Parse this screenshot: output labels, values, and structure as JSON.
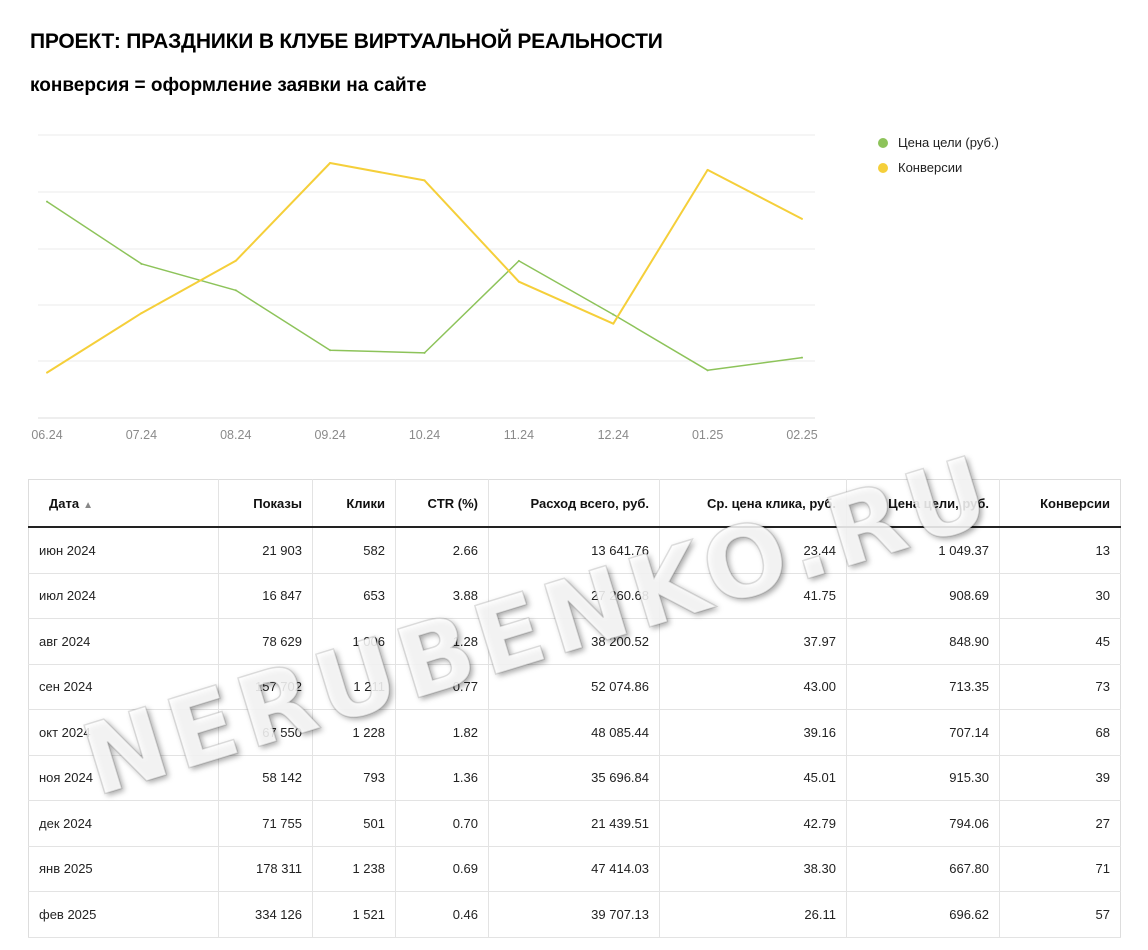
{
  "header": {
    "title": "ПРОЕКТ: ПРАЗДНИКИ В КЛУБЕ ВИРТУАЛЬНОЙ РЕАЛЬНОСТИ",
    "subtitle": "конверсия = оформление заявки на сайте"
  },
  "chart_data": {
    "type": "line",
    "categories": [
      "06.24",
      "07.24",
      "08.24",
      "09.24",
      "10.24",
      "11.24",
      "12.24",
      "01.25",
      "02.25"
    ],
    "series": [
      {
        "name": "Цена цели (руб.)",
        "color": "#8dc35a",
        "values": [
          1049.37,
          908.69,
          848.9,
          713.35,
          707.14,
          915.3,
          794.06,
          667.8,
          696.62
        ]
      },
      {
        "name": "Конверсии",
        "color": "#f5cf3a",
        "values": [
          13,
          30,
          45,
          73,
          68,
          39,
          27,
          71,
          57
        ]
      }
    ],
    "grid": true,
    "legend": "right"
  },
  "legend": {
    "items": [
      {
        "label": "Цена цели (руб.)",
        "color": "#8dc35a"
      },
      {
        "label": "Конверсии",
        "color": "#f5cf3a"
      }
    ]
  },
  "table": {
    "headers": [
      "Дата",
      "Показы",
      "Клики",
      "CTR (%)",
      "Расход всего, руб.",
      "Ср. цена клика, руб.",
      "Цена цели, руб.",
      "Конверсии"
    ],
    "sort_indicator": "▲",
    "rows": [
      [
        "июн 2024",
        "21 903",
        "582",
        "2.66",
        "13 641.76",
        "23.44",
        "1 049.37",
        "13"
      ],
      [
        "июл 2024",
        "16 847",
        "653",
        "3.88",
        "27 260.68",
        "41.75",
        "908.69",
        "30"
      ],
      [
        "авг 2024",
        "78 629",
        "1 006",
        "1.28",
        "38 200.52",
        "37.97",
        "848.90",
        "45"
      ],
      [
        "сен 2024",
        "157 702",
        "1 211",
        "0.77",
        "52 074.86",
        "43.00",
        "713.35",
        "73"
      ],
      [
        "окт 2024",
        "67 550",
        "1 228",
        "1.82",
        "48 085.44",
        "39.16",
        "707.14",
        "68"
      ],
      [
        "ноя 2024",
        "58 142",
        "793",
        "1.36",
        "35 696.84",
        "45.01",
        "915.30",
        "39"
      ],
      [
        "дек 2024",
        "71 755",
        "501",
        "0.70",
        "21 439.51",
        "42.79",
        "794.06",
        "27"
      ],
      [
        "янв 2025",
        "178 311",
        "1 238",
        "0.69",
        "47 414.03",
        "38.30",
        "667.80",
        "71"
      ],
      [
        "фев 2025",
        "334 126",
        "1 521",
        "0.46",
        "39 707.13",
        "26.11",
        "696.62",
        "57"
      ]
    ]
  },
  "watermark": "NERUBENKO.RU"
}
